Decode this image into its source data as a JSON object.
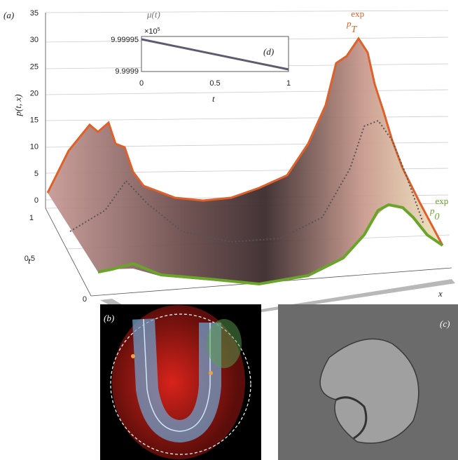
{
  "panels": {
    "a": "(a)",
    "b": "(b)",
    "c": "(c)",
    "d": "(d)"
  },
  "plot": {
    "z_label": "p(t, x)",
    "t_label": "t",
    "x_label": "x",
    "z_ticks": [
      "0",
      "5",
      "10",
      "15",
      "20",
      "25",
      "30",
      "35"
    ],
    "t_ticks": [
      "0",
      "0.5",
      "1"
    ],
    "final_label": {
      "base": "p",
      "sub": "T",
      "sup": "exp"
    },
    "initial_label": {
      "base": "p",
      "sub": "0",
      "sup": "exp"
    }
  },
  "inset": {
    "y_label": "μ(t)",
    "x_label": "t",
    "exponent": {
      "base": "×10",
      "power": "5"
    },
    "y_ticks": [
      "9.99995",
      "9.9999"
    ],
    "x_ticks": [
      "0",
      "0.5",
      "1"
    ]
  }
}
